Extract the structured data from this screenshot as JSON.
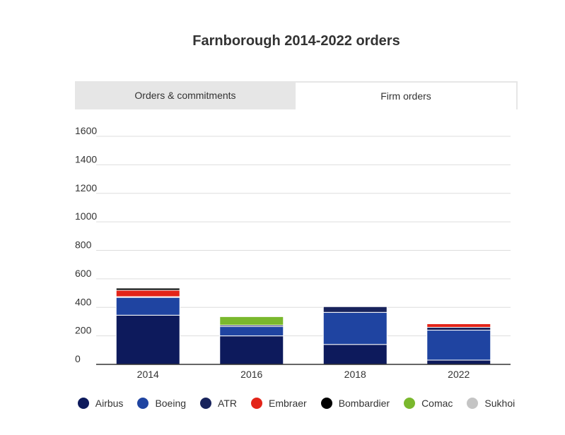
{
  "title": "Farnborough 2014-2022 orders",
  "tabs": [
    {
      "label": "Orders & commitments",
      "active": false
    },
    {
      "label": "Firm orders",
      "active": true
    }
  ],
  "chart_data": {
    "type": "bar",
    "stacked": true,
    "categories": [
      "2014",
      "2016",
      "2018",
      "2022"
    ],
    "ylim": [
      0,
      1600
    ],
    "yticks": [
      0,
      200,
      400,
      600,
      800,
      1000,
      1200,
      1400,
      1600
    ],
    "grid": true,
    "legend_position": "bottom",
    "series": [
      {
        "name": "Airbus",
        "color": "#0d1a5c",
        "values": [
          345,
          200,
          140,
          30
        ]
      },
      {
        "name": "Boeing",
        "color": "#1f44a1",
        "values": [
          125,
          65,
          225,
          210
        ]
      },
      {
        "name": "ATR",
        "color": "#18235c",
        "values": [
          5,
          10,
          40,
          20
        ]
      },
      {
        "name": "Embraer",
        "color": "#e32419",
        "values": [
          45,
          0,
          0,
          25
        ]
      },
      {
        "name": "Bombardier",
        "color": "#000000",
        "values": [
          15,
          0,
          0,
          0
        ]
      },
      {
        "name": "Comac",
        "color": "#7ab82d",
        "values": [
          0,
          60,
          0,
          0
        ]
      },
      {
        "name": "Sukhoi",
        "color": "#c4c4c4",
        "values": [
          0,
          0,
          0,
          0
        ]
      }
    ]
  }
}
